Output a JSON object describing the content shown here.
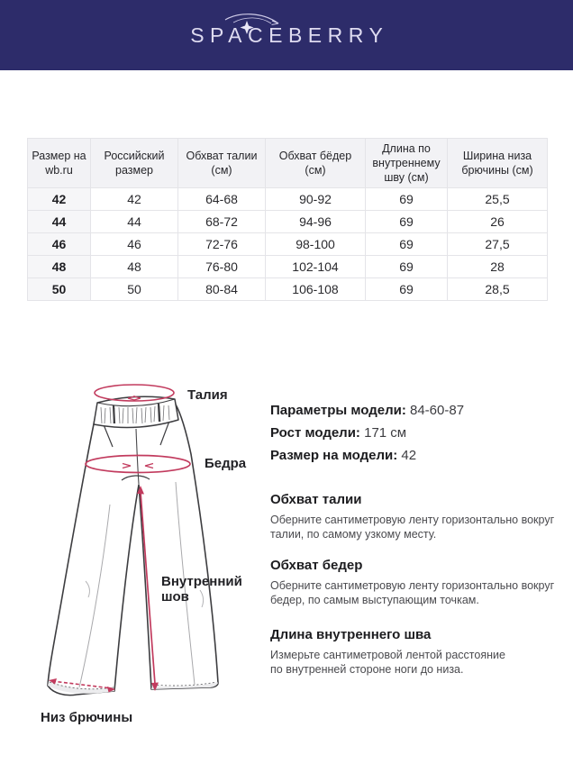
{
  "colors": {
    "header_navy": "#2d2c6a",
    "accent_pink": "#c23b5e"
  },
  "header": {
    "logo_text": "SPACEBERRY"
  },
  "size_table": {
    "columns": [
      "Размер на wb.ru",
      "Российский размер",
      "Обхват талии (см)",
      "Обхват бёдер (см)",
      "Длина по внутреннему шву (см)",
      "Ширина низа брючины (см)"
    ],
    "rows": [
      [
        "42",
        "42",
        "64-68",
        "90-92",
        "69",
        "25,5"
      ],
      [
        "44",
        "44",
        "68-72",
        "94-96",
        "69",
        "26"
      ],
      [
        "46",
        "46",
        "72-76",
        "98-100",
        "69",
        "27,5"
      ],
      [
        "48",
        "48",
        "76-80",
        "102-104",
        "69",
        "28"
      ],
      [
        "50",
        "50",
        "80-84",
        "106-108",
        "69",
        "28,5"
      ]
    ]
  },
  "diagram": {
    "labels": {
      "waist": "Талия",
      "hips": "Бедра",
      "inner_seam": "Внутренний шов",
      "leg_bottom": "Низ брючины"
    }
  },
  "model_info": {
    "params_label": "Параметры модели:",
    "params_value": " 84-60-87",
    "height_label": "Рост модели:",
    "height_value": " 171 см",
    "size_label": "Размер на модели:",
    "size_value": " 42"
  },
  "instructions": [
    {
      "title": "Обхват талии",
      "text": "Оберните сантиметровую ленту горизонтально вокруг\nталии, по самому узкому месту."
    },
    {
      "title": "Обхват бедер",
      "text": "Оберните сантиметровую ленту горизонтально вокруг\nбедер, по самым выступающим точкам."
    },
    {
      "title": "Длина внутреннего шва",
      "text": "Измерьте сантиметровой лентой расстояние\nпо внутренней стороне ноги до низа."
    }
  ]
}
